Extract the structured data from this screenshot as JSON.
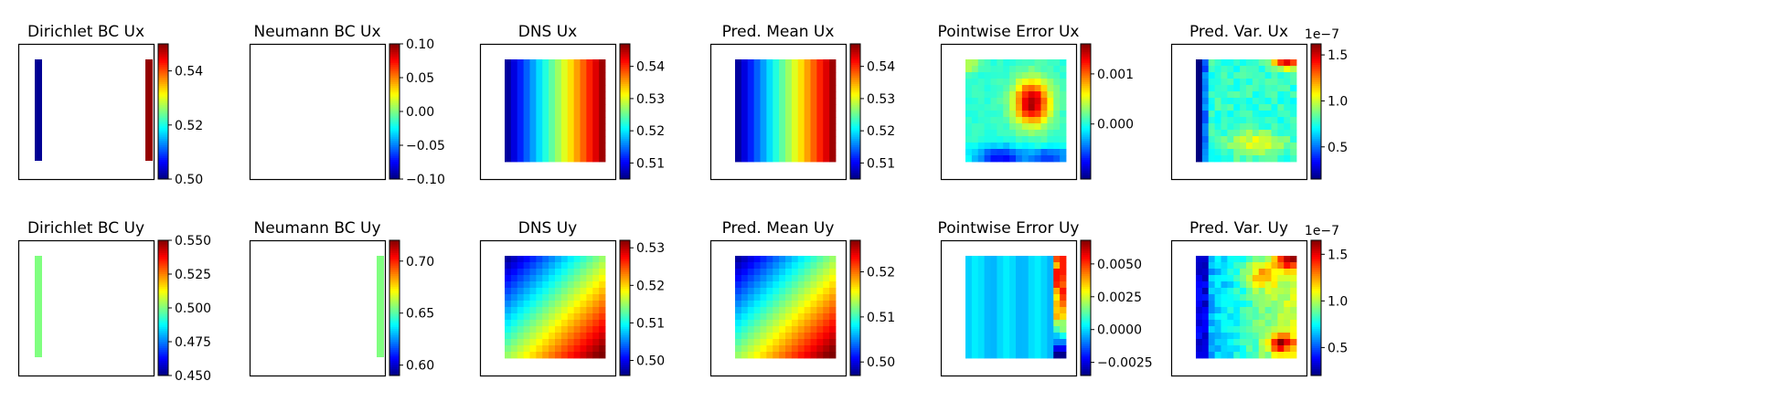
{
  "figure": {
    "rows": [
      {
        "panels": [
          {
            "title": "Dirichlet BC Ux",
            "kind": "bc-dirichlet-x",
            "colorbar": {
              "ticks": [
                "0.50",
                "0.52",
                "0.54"
              ],
              "tick_values": [
                0.5,
                0.52,
                0.54
              ],
              "range": [
                0.5,
                0.55
              ],
              "exponent": ""
            },
            "field_values": {
              "left_edge": 0.5,
              "right_edge": 0.55
            }
          },
          {
            "title": "Neumann BC Ux",
            "kind": "empty",
            "colorbar": {
              "ticks": [
                "0.10",
                "0.05",
                "0.00",
                "−0.05",
                "−0.10"
              ],
              "tick_values": [
                0.1,
                0.05,
                0.0,
                -0.05,
                -0.1
              ],
              "range": [
                -0.1,
                0.1
              ],
              "exponent": ""
            }
          },
          {
            "title": "DNS Ux",
            "kind": "field-x",
            "colorbar": {
              "ticks": [
                "0.54",
                "0.53",
                "0.52",
                "0.51"
              ],
              "tick_values": [
                0.54,
                0.53,
                0.52,
                0.51
              ],
              "range": [
                0.505,
                0.547
              ],
              "exponent": ""
            }
          },
          {
            "title": "Pred. Mean Ux",
            "kind": "field-x",
            "colorbar": {
              "ticks": [
                "0.54",
                "0.53",
                "0.52",
                "0.51"
              ],
              "tick_values": [
                0.54,
                0.53,
                0.52,
                0.51
              ],
              "range": [
                0.505,
                0.547
              ],
              "exponent": ""
            }
          },
          {
            "title": "Pointwise Error Ux",
            "kind": "error-x",
            "colorbar": {
              "ticks": [
                "0.001",
                "0.000"
              ],
              "tick_values": [
                0.001,
                0.0
              ],
              "range": [
                -0.0011,
                0.0016
              ],
              "exponent": ""
            }
          },
          {
            "title": "Pred. Var. Ux",
            "kind": "var-x",
            "colorbar": {
              "ticks": [
                "1.5",
                "1.0",
                "0.5"
              ],
              "tick_values": [
                1.5,
                1.0,
                0.5
              ],
              "range": [
                0.15,
                1.62
              ],
              "exponent": "1e−7"
            }
          }
        ]
      },
      {
        "panels": [
          {
            "title": "Dirichlet BC Uy",
            "kind": "bc-dirichlet-y",
            "colorbar": {
              "ticks": [
                "0.550",
                "0.525",
                "0.500",
                "0.475",
                "0.450"
              ],
              "tick_values": [
                0.55,
                0.525,
                0.5,
                0.475,
                0.45
              ],
              "range": [
                0.45,
                0.55
              ],
              "exponent": ""
            },
            "field_values": {
              "left_edge": 0.5
            }
          },
          {
            "title": "Neumann BC Uy",
            "kind": "bc-neumann-y",
            "colorbar": {
              "ticks": [
                "0.70",
                "0.65",
                "0.60"
              ],
              "tick_values": [
                0.7,
                0.65,
                0.6
              ],
              "range": [
                0.59,
                0.72
              ],
              "exponent": ""
            },
            "field_values": {
              "right_edge": 0.655
            }
          },
          {
            "title": "DNS Uy",
            "kind": "field-y",
            "colorbar": {
              "ticks": [
                "0.53",
                "0.52",
                "0.51",
                "0.50"
              ],
              "tick_values": [
                0.53,
                0.52,
                0.51,
                0.5
              ],
              "range": [
                0.496,
                0.532
              ],
              "exponent": ""
            }
          },
          {
            "title": "Pred. Mean Uy",
            "kind": "field-y",
            "colorbar": {
              "ticks": [
                "0.52",
                "0.51",
                "0.50"
              ],
              "tick_values": [
                0.52,
                0.51,
                0.5
              ],
              "range": [
                0.497,
                0.527
              ],
              "exponent": ""
            }
          },
          {
            "title": "Pointwise Error Uy",
            "kind": "error-y",
            "colorbar": {
              "ticks": [
                "0.0050",
                "0.0025",
                "0.0000",
                "−0.0025"
              ],
              "tick_values": [
                0.005,
                0.0025,
                0.0,
                -0.0025
              ],
              "range": [
                -0.0035,
                0.0068
              ],
              "exponent": ""
            }
          },
          {
            "title": "Pred. Var. Uy",
            "kind": "var-y",
            "colorbar": {
              "ticks": [
                "1.5",
                "1.0",
                "0.5"
              ],
              "tick_values": [
                1.5,
                1.0,
                0.5
              ],
              "range": [
                0.2,
                1.65
              ],
              "exponent": "1e−7"
            }
          }
        ]
      }
    ]
  },
  "chart_data": {
    "type": "heatmap",
    "colormap": "jet",
    "grid": false,
    "panels": [
      "Dirichlet BC Ux",
      "Neumann BC Ux",
      "DNS Ux",
      "Pred. Mean Ux",
      "Pointwise Error Ux",
      "Pred. Var. Ux",
      "Dirichlet BC Uy",
      "Neumann BC Uy",
      "DNS Uy",
      "Pred. Mean Uy",
      "Pointwise Error Uy",
      "Pred. Var. Uy"
    ]
  }
}
